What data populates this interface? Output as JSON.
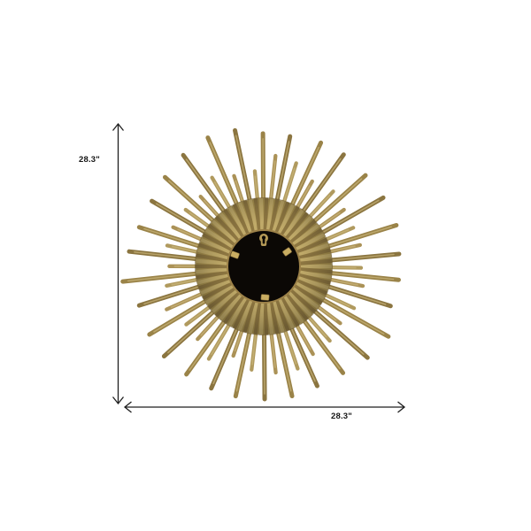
{
  "figure": {
    "type": "product-dimension-diagram",
    "subject": "gold sunburst wall mirror, back view"
  },
  "dimensions": {
    "height": {
      "label": "28.3\""
    },
    "width": {
      "label": "28.3\""
    }
  },
  "colors": {
    "background": "#ffffff",
    "dimension_line": "#1e1e1e",
    "label_text": "#151515",
    "gold_light": "#cdb97e",
    "gold_mid": "#a8914f",
    "gold_deep": "#8d7641",
    "gold_rib_light": "#c0aa69",
    "gold_shades": [
      "#9a8348",
      "#ab9257",
      "#8b7540",
      "#b09a5e"
    ],
    "center_black": "#0b0805",
    "rim_gold": "#9c8148",
    "hardware_gold": "#c9ad62",
    "hardware_gold_dark": "#7c6636",
    "keyhole_gold": "#b59a57"
  }
}
